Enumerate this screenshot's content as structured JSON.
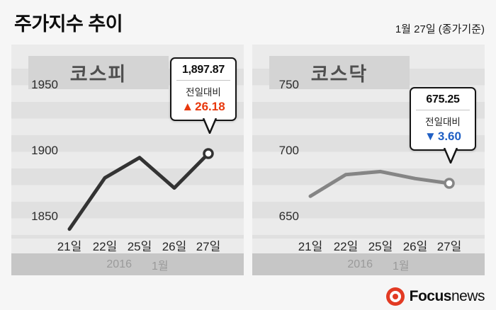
{
  "header": {
    "title": "주가지수 추이",
    "date_note": "1월 27일 (종가기준)"
  },
  "chart_data": [
    {
      "type": "line",
      "title": "코스피",
      "categories": [
        "21일",
        "22일",
        "25일",
        "26일",
        "27일"
      ],
      "values": [
        1840.5,
        1879.4,
        1894.8,
        1871.7,
        1897.87
      ],
      "y_ticks": [
        "1950",
        "1900",
        "1850"
      ],
      "ylim": [
        1830,
        1960
      ],
      "grid": "striped-bands",
      "legend": "none",
      "x_axis_group": {
        "year": "2016",
        "month": "1월"
      },
      "line_color": "#333333",
      "callout": {
        "value": "1,897.87",
        "label": "전일대비",
        "arrow": "▲",
        "change": "26.18",
        "change_color": "#e8380d",
        "direction": "up"
      }
    },
    {
      "type": "line",
      "title": "코스닥",
      "categories": [
        "21일",
        "22일",
        "25일",
        "26일",
        "27일"
      ],
      "values": [
        665.5,
        681.9,
        684.2,
        678.85,
        675.25
      ],
      "y_ticks": [
        "750",
        "700",
        "650"
      ],
      "ylim": [
        645,
        760
      ],
      "grid": "striped-bands",
      "legend": "none",
      "x_axis_group": {
        "year": "2016",
        "month": "1월"
      },
      "line_color": "#858585",
      "callout": {
        "value": "675.25",
        "label": "전일대비",
        "arrow": "▼",
        "change": "3.60",
        "change_color": "#1f5fc4",
        "direction": "down"
      }
    }
  ],
  "footer": {
    "brand_bold": "Focus",
    "brand_rest": "news"
  }
}
